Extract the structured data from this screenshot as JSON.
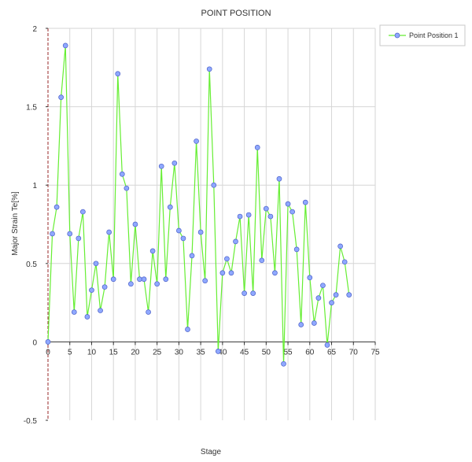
{
  "chart_data": {
    "type": "line",
    "title": "POINT POSITION",
    "xlabel": "Stage",
    "ylabel": "Major Strain Te[%]",
    "xlim": [
      0,
      75
    ],
    "ylim": [
      -0.5,
      2
    ],
    "x_ticks": [
      "0",
      "5",
      "10",
      "15",
      "20",
      "25",
      "30",
      "35",
      "40",
      "45",
      "50",
      "55",
      "60",
      "65",
      "70",
      "75"
    ],
    "y_ticks": [
      "2",
      "1.5",
      "1",
      "0.5",
      "0",
      "-0.5"
    ],
    "grid": "vertical",
    "legend_position": "top-right",
    "line_color": "#66ee33",
    "marker_color": "#8fa8ff",
    "series": [
      {
        "name": "Point Position 1",
        "x": [
          0,
          1,
          2,
          3,
          4,
          5,
          6,
          7,
          8,
          9,
          10,
          11,
          12,
          13,
          14,
          15,
          16,
          17,
          18,
          19,
          20,
          21,
          22,
          23,
          24,
          25,
          26,
          27,
          28,
          29,
          30,
          31,
          32,
          33,
          34,
          35,
          36,
          37,
          38,
          39,
          40,
          41,
          42,
          43,
          44,
          45,
          46,
          47,
          48,
          49,
          50,
          51,
          52,
          53,
          54,
          55,
          56,
          57,
          58,
          59,
          60,
          61,
          62,
          63,
          64,
          65,
          66,
          67,
          68,
          69
        ],
        "y": [
          0,
          0.69,
          0.86,
          1.56,
          1.89,
          0.69,
          0.19,
          0.66,
          0.83,
          0.16,
          0.33,
          0.5,
          0.2,
          0.35,
          0.7,
          0.4,
          1.71,
          1.07,
          0.98,
          0.37,
          0.75,
          0.4,
          0.4,
          0.19,
          0.58,
          0.37,
          1.12,
          0.4,
          0.86,
          1.14,
          0.71,
          0.66,
          0.08,
          0.55,
          1.28,
          0.7,
          0.39,
          1.74,
          1.0,
          -0.06,
          0.44,
          0.53,
          0.44,
          0.64,
          0.8,
          0.31,
          0.81,
          0.31,
          1.24,
          0.52,
          0.85,
          0.8,
          0.44,
          1.04,
          -0.14,
          0.88,
          0.83,
          0.59,
          0.11,
          0.89,
          0.41,
          0.12,
          0.28,
          0.36,
          -0.02,
          0.25,
          0.3,
          0.61,
          0.51,
          0.3
        ]
      }
    ]
  }
}
